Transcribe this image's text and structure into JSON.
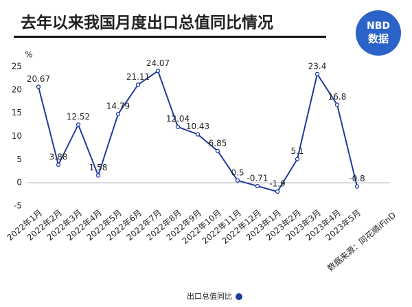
{
  "chart_data": {
    "type": "line",
    "title": "去年以来我国月度出口总值同比情况",
    "logo": {
      "top": "NBD",
      "bottom": "数据"
    },
    "y_unit": "%",
    "categories": [
      "2022年1月",
      "2022年2月",
      "2022年3月",
      "2022年4月",
      "2022年5月",
      "2022年6月",
      "2022年7月",
      "2022年8月",
      "2022年9月",
      "2022年10月",
      "2022年11月",
      "2022年12月",
      "2023年1月",
      "2023年2月",
      "2023年3月",
      "2023年4月",
      "2023年5月"
    ],
    "series": [
      {
        "name": "出口总值同比",
        "color": "#1f3c99",
        "values": [
          20.67,
          3.88,
          12.52,
          1.58,
          14.79,
          21.11,
          24.07,
          12.04,
          10.43,
          6.85,
          0.5,
          -0.71,
          -1.9,
          5.1,
          23.4,
          16.8,
          -0.8
        ]
      }
    ],
    "ylim": [
      -5,
      25
    ],
    "yticks": [
      -5,
      0,
      5,
      10,
      15,
      20,
      25
    ],
    "grid": false,
    "source": "数据来源：同花顺iFinD"
  }
}
